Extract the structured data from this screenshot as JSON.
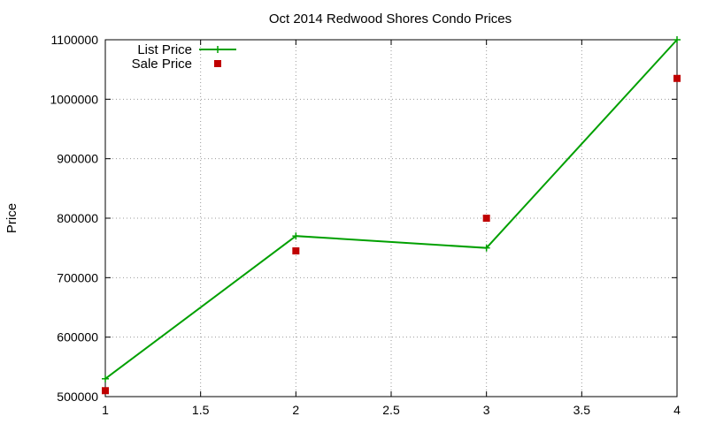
{
  "chart_data": {
    "type": "line",
    "title": "Oct 2014 Redwood Shores Condo Prices",
    "xlabel": "",
    "ylabel": "Price",
    "xlim": [
      1,
      4
    ],
    "ylim": [
      500000,
      1100000
    ],
    "x_ticks": [
      "1",
      "1.5",
      "2",
      "2.5",
      "3",
      "3.5",
      "4"
    ],
    "y_ticks": [
      "500000",
      "600000",
      "700000",
      "800000",
      "900000",
      "1000000",
      "1100000"
    ],
    "x_tick_values": [
      1,
      1.5,
      2,
      2.5,
      3,
      3.5,
      4
    ],
    "y_tick_values": [
      500000,
      600000,
      700000,
      800000,
      900000,
      1000000,
      1100000
    ],
    "grid": true,
    "legend_position": "top-left",
    "series": [
      {
        "name": "List Price",
        "style": "linespoints",
        "marker": "plus",
        "color": "#00a000",
        "x": [
          1,
          2,
          3,
          4
        ],
        "values": [
          530000,
          770000,
          750000,
          1100000
        ]
      },
      {
        "name": "Sale Price",
        "style": "points",
        "marker": "square",
        "color": "#c00000",
        "x": [
          1,
          2,
          3,
          4
        ],
        "values": [
          510000,
          745000,
          800000,
          1035000
        ]
      }
    ]
  }
}
